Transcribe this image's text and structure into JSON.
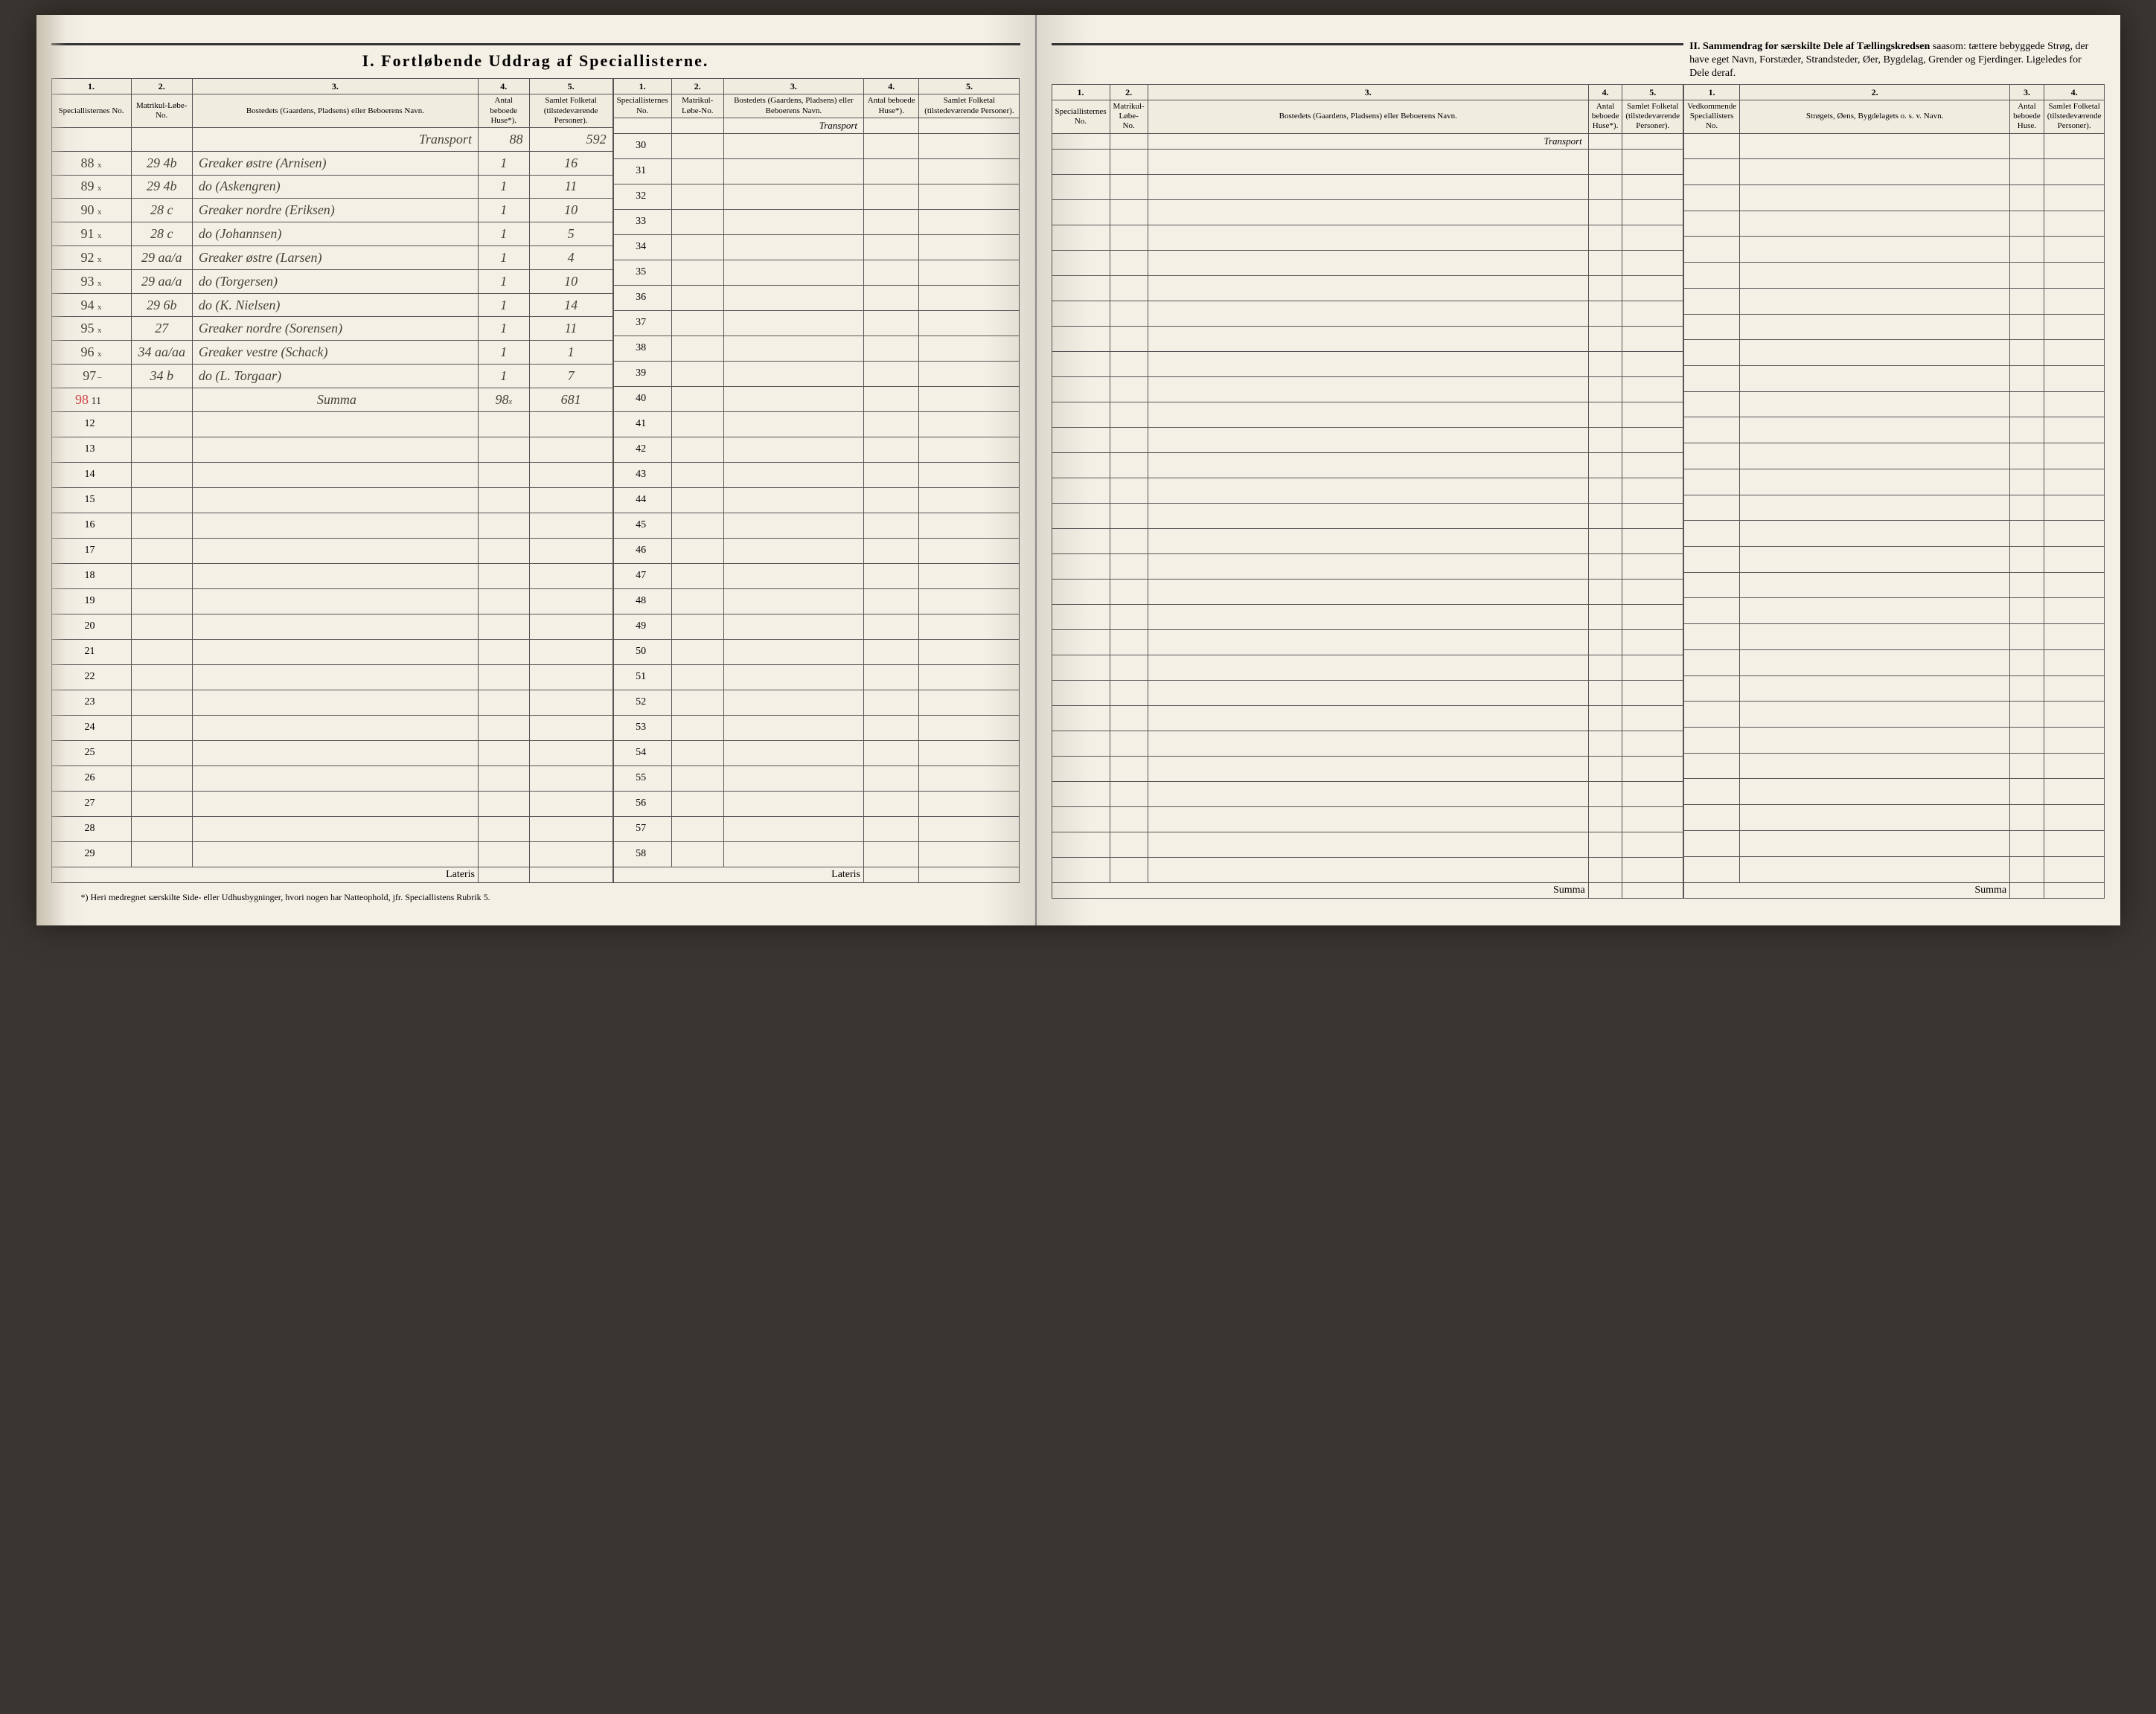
{
  "section1": {
    "title": "I. Fortløbende Uddrag af Speciallisterne.",
    "columns": {
      "c1": "1.",
      "c2": "2.",
      "c3": "3.",
      "c4": "4.",
      "c5": "5.",
      "h1": "Speciallisternes No.",
      "h2": "Matrikul-Løbe-No.",
      "h3": "Bostedets (Gaardens, Pladsens) eller Beboerens Navn.",
      "h4": "Antal beboede Huse*).",
      "h5": "Samlet Folketal (tilstedeværende Personer)."
    },
    "transport_label": "Transport",
    "transport_values": {
      "huse": "88",
      "folketal": "592"
    },
    "rows_left_a": [
      {
        "no": "88",
        "mark": "x",
        "matrikul": "29 4b",
        "bosted": "Greaker østre (Arnisen)",
        "huse": "1",
        "folketal": "16"
      },
      {
        "no": "89",
        "mark": "x",
        "matrikul": "29 4b",
        "bosted": "do (Askengren)",
        "huse": "1",
        "folketal": "11"
      },
      {
        "no": "90",
        "mark": "x",
        "matrikul": "28 c",
        "bosted": "Greaker nordre (Eriksen)",
        "huse": "1",
        "folketal": "10"
      },
      {
        "no": "91",
        "mark": "x",
        "matrikul": "28 c",
        "bosted": "do (Johannsen)",
        "huse": "1",
        "folketal": "5"
      },
      {
        "no": "92",
        "mark": "x",
        "matrikul": "29 aa/a",
        "bosted": "Greaker østre (Larsen)",
        "huse": "1",
        "folketal": "4"
      },
      {
        "no": "93",
        "mark": "x",
        "matrikul": "29 aa/a",
        "bosted": "do (Torgersen)",
        "huse": "1",
        "folketal": "10"
      },
      {
        "no": "94",
        "mark": "x",
        "matrikul": "29 6b",
        "bosted": "do (K. Nielsen)",
        "huse": "1",
        "folketal": "14"
      },
      {
        "no": "95",
        "mark": "x",
        "matrikul": "27",
        "bosted": "Greaker nordre (Sorensen)",
        "huse": "1",
        "folketal": "11"
      },
      {
        "no": "96",
        "mark": "x",
        "matrikul": "34 aa/aa",
        "bosted": "Greaker vestre (Schack)",
        "huse": "1",
        "folketal": "1"
      },
      {
        "no": "97",
        "mark": "̶",
        "matrikul": "34 b",
        "bosted": "do (L. Torgaar)",
        "huse": "1",
        "folketal": "7"
      }
    ],
    "summa_row": {
      "no": "98",
      "label": "Summa",
      "huse": "98",
      "mark": "x",
      "folketal": "681"
    },
    "empty_printed_left_a": [
      "11",
      "12",
      "13",
      "14",
      "15",
      "16",
      "17",
      "18",
      "19",
      "20",
      "21",
      "22",
      "23",
      "24",
      "25",
      "26",
      "27",
      "28",
      "29"
    ],
    "empty_printed_left_b": [
      "30",
      "31",
      "32",
      "33",
      "34",
      "35",
      "36",
      "37",
      "38",
      "39",
      "40",
      "41",
      "42",
      "43",
      "44",
      "45",
      "46",
      "47",
      "48",
      "49",
      "50",
      "51",
      "52",
      "53",
      "54",
      "55",
      "56",
      "57",
      "58"
    ],
    "lateris": "Lateris",
    "footnote": "*) Heri medregnet særskilte Side- eller Udhusbygninger, hvori nogen har Natteophold, jfr. Speciallistens Rubrik 5."
  },
  "section2": {
    "title_bold": "II. Sammendrag for særskilte Dele af Tællingskredsen",
    "title_rest": " saasom: tættere bebyggede Strøg, der have eget Navn, Forstæder, Strandsteder, Øer, Bygdelag, Grender og Fjerdinger. Ligeledes for Dele deraf.",
    "columns": {
      "c1": "1.",
      "c2": "2.",
      "c3": "3.",
      "c4": "4.",
      "h1": "Vedkommende Speciallisters No.",
      "h2": "Strøgets, Øens, Bygdelagets o. s. v. Navn.",
      "h3": "Antal beboede Huse.",
      "h4": "Samlet Folketal (tilstedeværende Personer)."
    },
    "summa": "Summa"
  }
}
